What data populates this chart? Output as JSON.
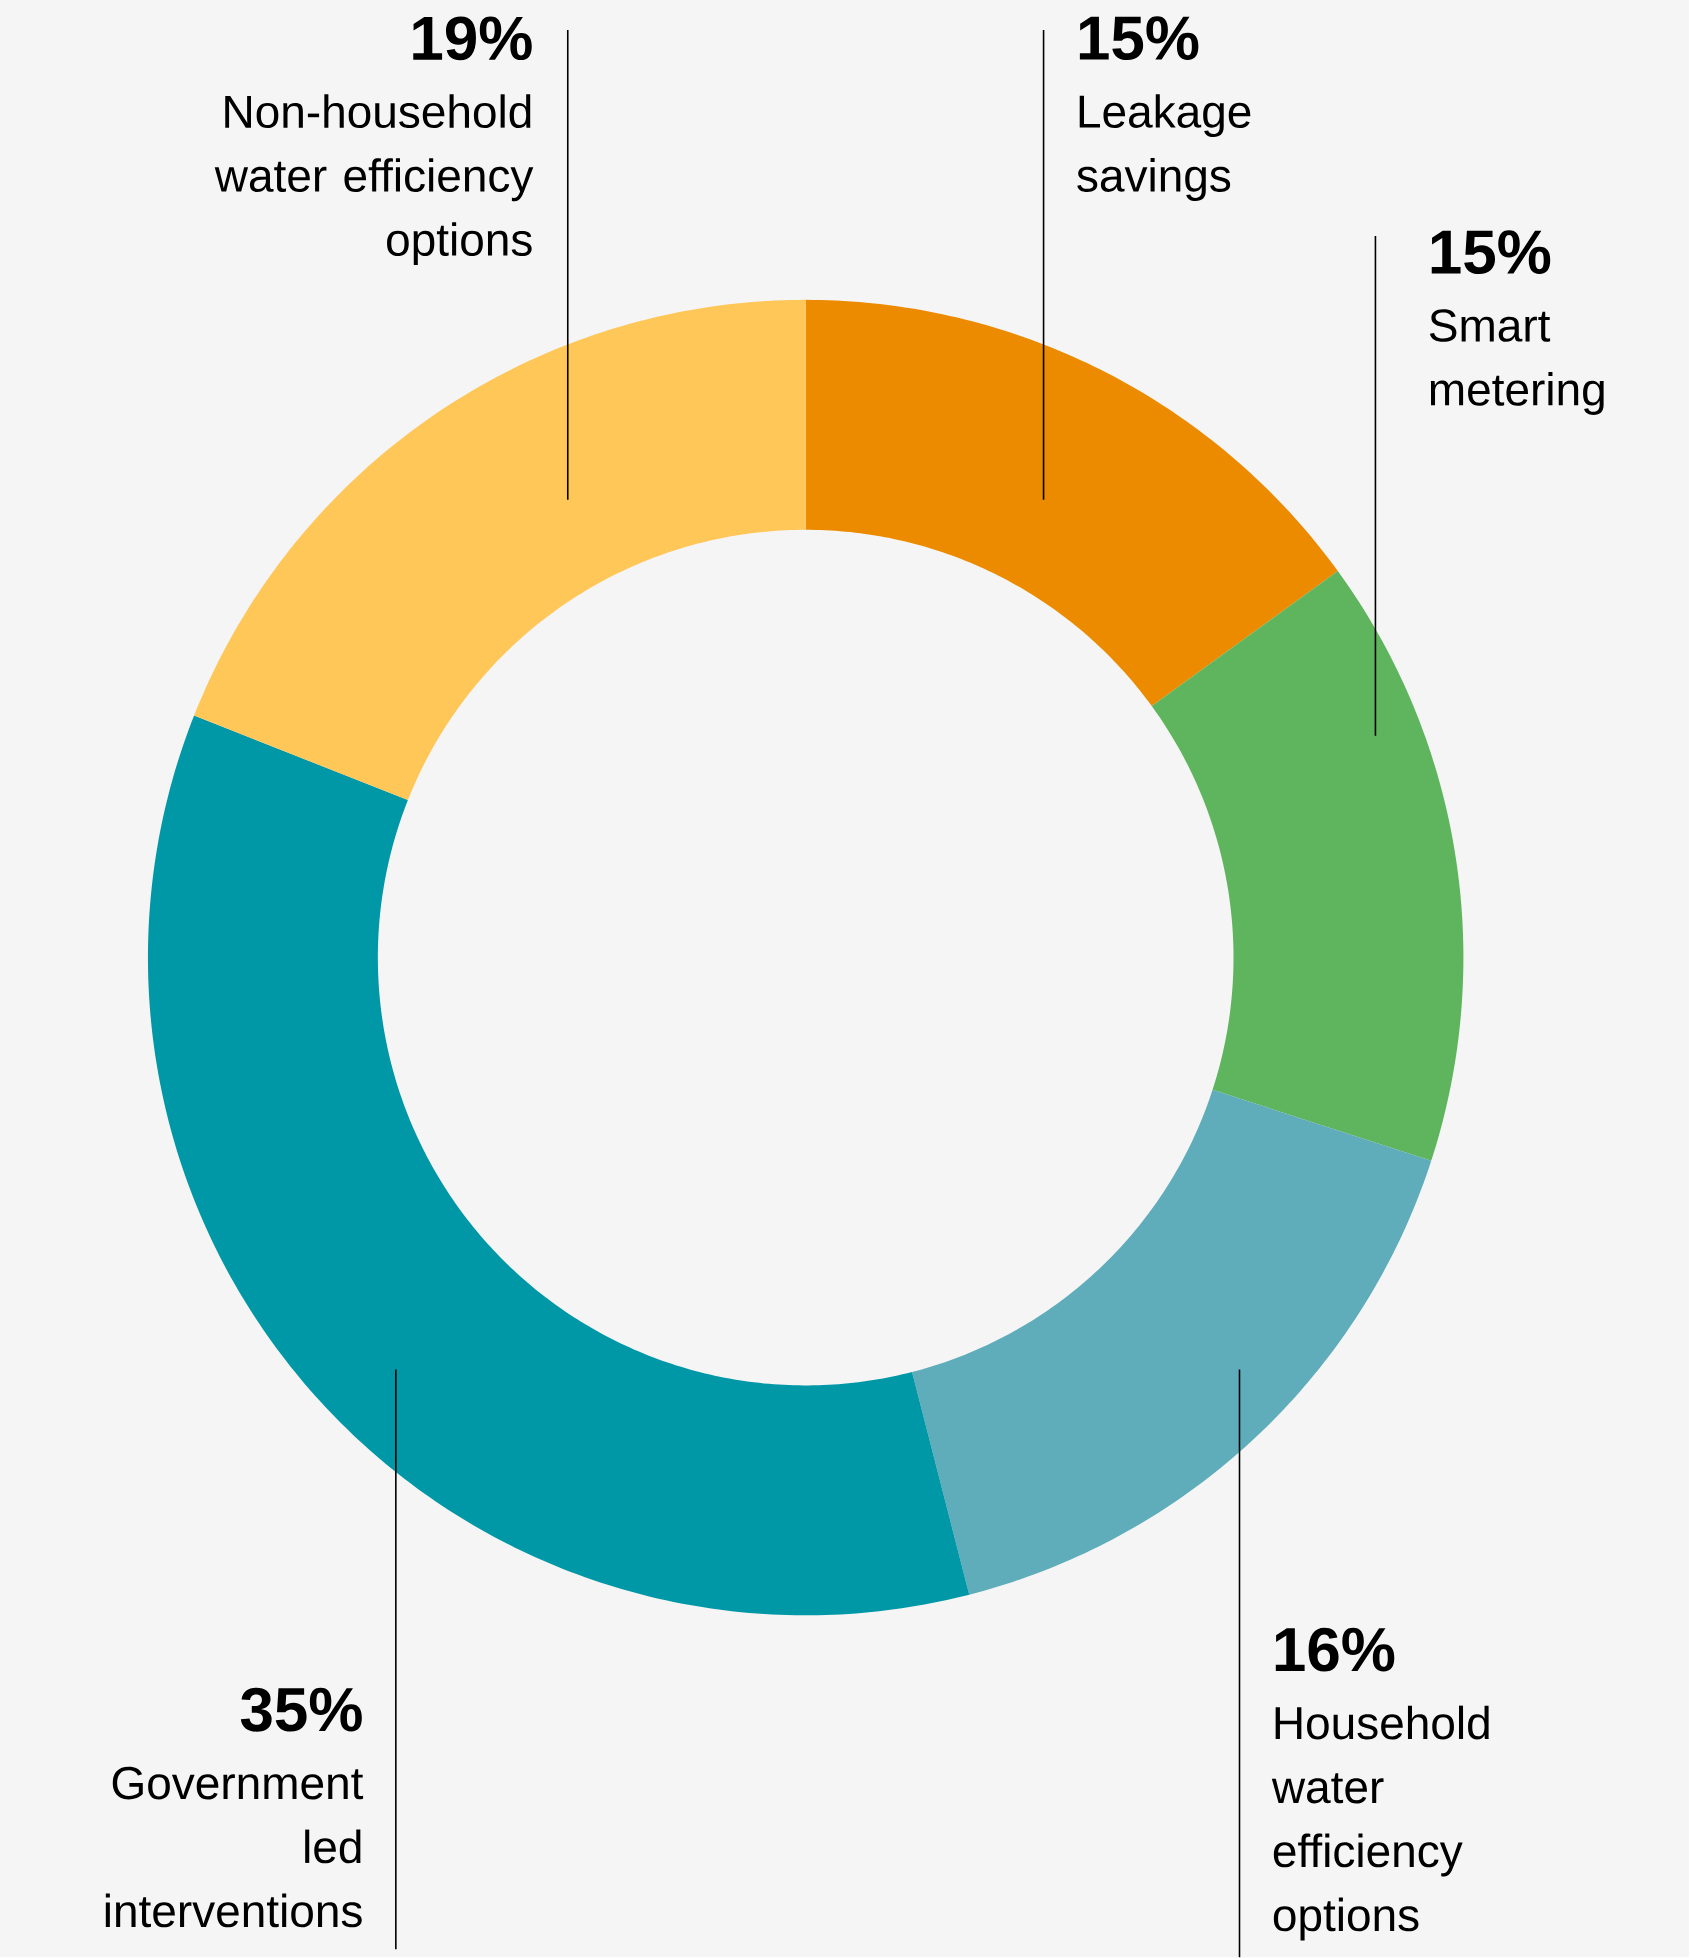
{
  "chart_data": {
    "type": "donut",
    "categories": [
      "Leakage savings",
      "Smart metering",
      "Household water efficiency options",
      "Government led interventions",
      "Non-household water efficiency options"
    ],
    "values": [
      15,
      15,
      16,
      35,
      19
    ],
    "value_labels": [
      "15%",
      "15%",
      "16%",
      "35%",
      "19%"
    ],
    "colors": [
      "#ed8b00",
      "#5fb55e",
      "#5facba",
      "#0097a7",
      "#ffc658"
    ]
  }
}
